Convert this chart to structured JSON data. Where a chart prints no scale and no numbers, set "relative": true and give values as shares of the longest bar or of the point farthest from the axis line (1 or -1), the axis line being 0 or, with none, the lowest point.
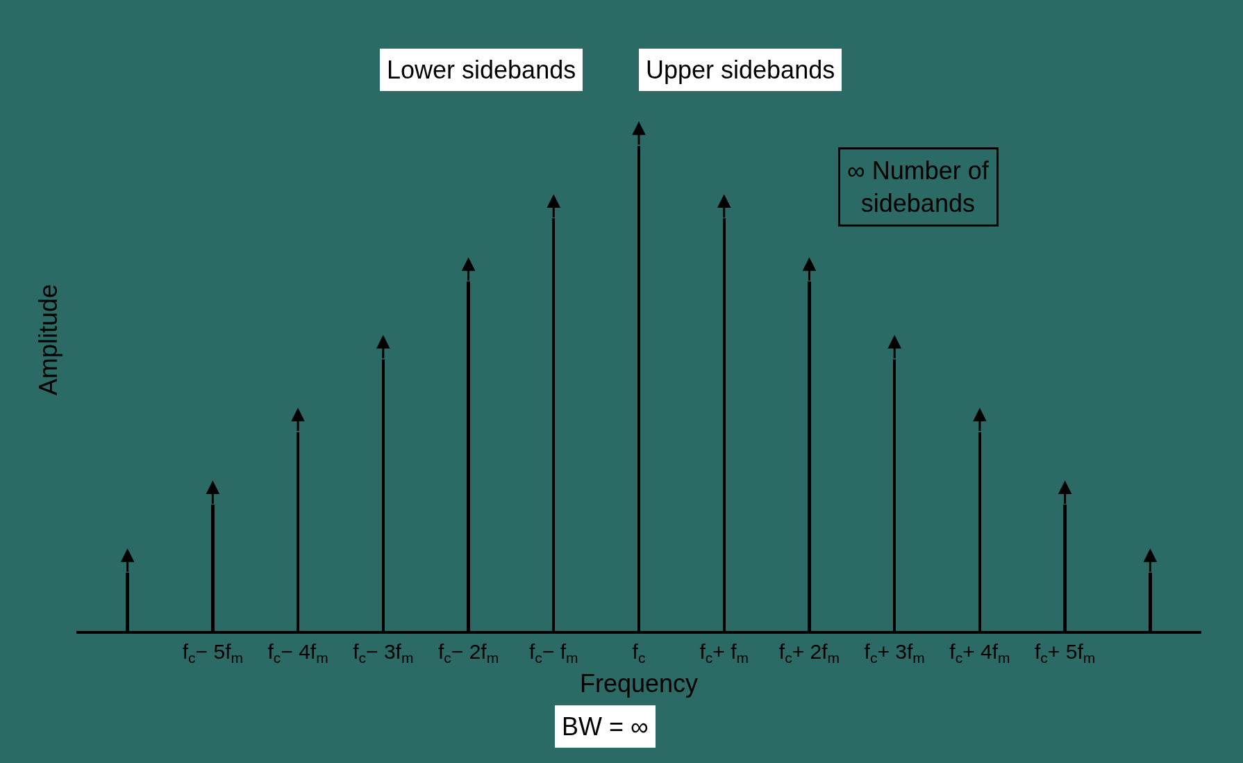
{
  "chart_data": {
    "type": "bar",
    "relative": true,
    "marker": "triangle",
    "color": "#000000",
    "xlabel": "Frequency",
    "ylabel": "Amplitude",
    "categories": [
      null,
      "f$_{c}$− 5f$_{m}$",
      "f$_{c}$− 4f$_{m}$",
      "f$_{c}$− 3f$_{m}$",
      "f$_{c}$− 2f$_{m}$",
      "f$_{c}$− f$_{m}$",
      "f$_{c}$",
      "f$_{c}$+ f$_{m}$",
      "f$_{c}$+ 2f$_{m}$",
      "f$_{c}$+ 3f$_{m}$",
      "f$_{c}$+ 4f$_{m}$",
      "f$_{c}$+ 5f$_{m}$",
      null
    ],
    "values": [
      0.12,
      0.26,
      0.41,
      0.56,
      0.72,
      0.85,
      1,
      0.85,
      0.72,
      0.56,
      0.41,
      0.26,
      0.12
    ],
    "annotations": [
      "Lower sidebands",
      "Upper sidebands",
      "∞ Number of sidebands",
      "BW = ∞"
    ]
  }
}
